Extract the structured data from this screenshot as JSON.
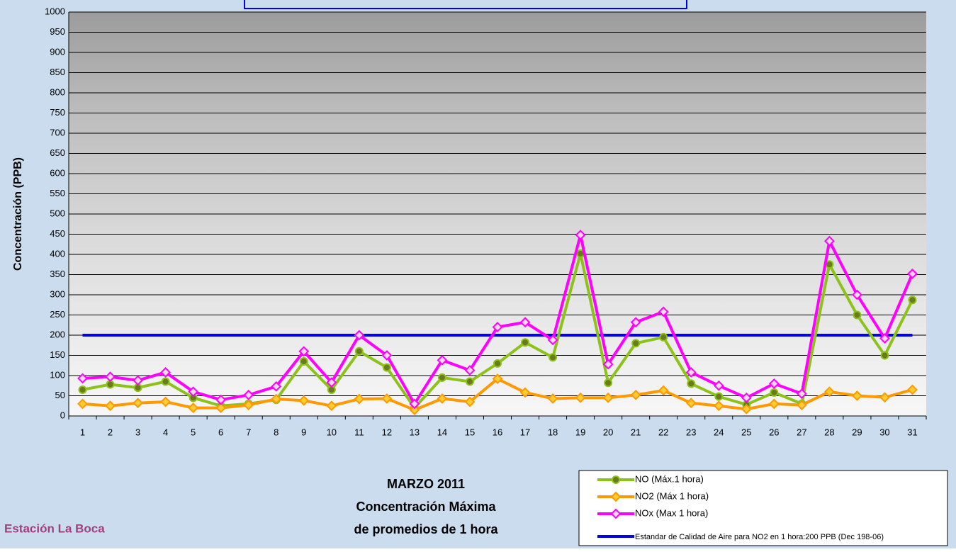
{
  "chart_data": {
    "type": "line",
    "title": [
      "MARZO 2011",
      "Concentración Máxima",
      "de promedios de 1 hora"
    ],
    "station": "Estación La Boca",
    "y_label": "Concentración  (PPB)",
    "categories": [
      "1",
      "2",
      "3",
      "4",
      "5",
      "6",
      "7",
      "8",
      "9",
      "10",
      "11",
      "12",
      "13",
      "14",
      "15",
      "16",
      "17",
      "18",
      "19",
      "20",
      "21",
      "22",
      "23",
      "24",
      "25",
      "26",
      "27",
      "28",
      "29",
      "30",
      "31"
    ],
    "series": [
      {
        "name": "NO (Máx.1 hora)",
        "color": "#8cc21a",
        "marker": "circle",
        "marker_fill": "#6b7a1a",
        "values": [
          65,
          78,
          70,
          85,
          45,
          25,
          30,
          40,
          135,
          65,
          160,
          120,
          20,
          95,
          85,
          130,
          182,
          145,
          402,
          82,
          180,
          195,
          80,
          48,
          28,
          58,
          30,
          375,
          250,
          150,
          287
        ]
      },
      {
        "name": "NO2 (Máx 1 hora)",
        "color": "#ff9900",
        "marker": "diamond",
        "marker_fill": "#ffcc33",
        "values": [
          30,
          25,
          32,
          35,
          20,
          20,
          27,
          42,
          38,
          25,
          42,
          43,
          15,
          43,
          35,
          92,
          58,
          43,
          45,
          45,
          52,
          63,
          32,
          25,
          17,
          30,
          27,
          60,
          50,
          46,
          65
        ]
      },
      {
        "name": "NOx (Max 1 hora)",
        "color": "#ff00ff",
        "marker": "diamond",
        "marker_fill": "#ffd6f5",
        "values": [
          93,
          97,
          88,
          108,
          60,
          40,
          52,
          73,
          160,
          83,
          200,
          150,
          30,
          138,
          113,
          220,
          232,
          188,
          448,
          128,
          232,
          258,
          108,
          75,
          45,
          80,
          55,
          433,
          300,
          192,
          352
        ]
      }
    ],
    "reference_line": {
      "name": "Estandar de Calidad de Aire para NO2 en 1 hora:200 PPB (Dec 198-06)",
      "color": "#0000ee",
      "value": 200
    },
    "ylim": [
      0,
      1000
    ],
    "yticks": [
      0,
      50,
      100,
      150,
      200,
      250,
      300,
      350,
      400,
      450,
      500,
      550,
      600,
      650,
      700,
      750,
      800,
      850,
      900,
      950,
      1000
    ],
    "grid": true
  }
}
